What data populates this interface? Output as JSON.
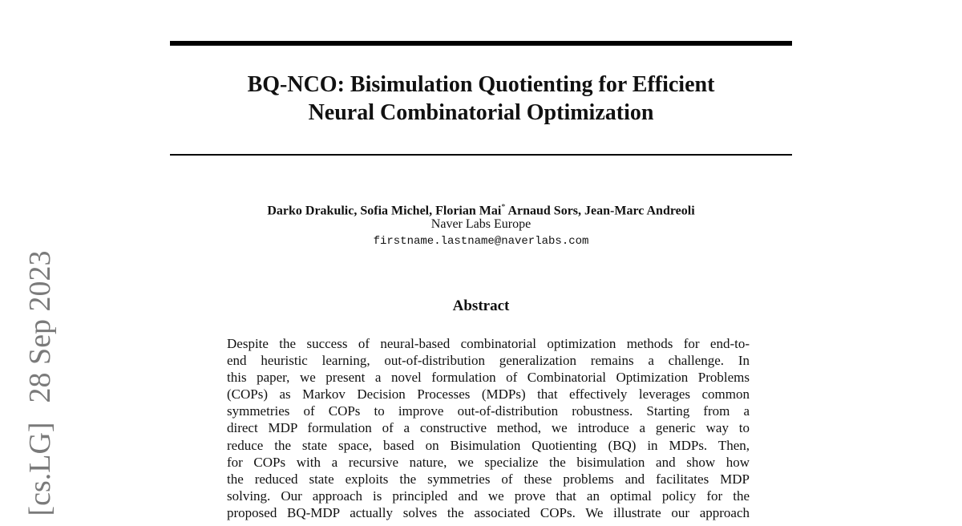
{
  "arxiv_stamp": {
    "category": "[cs.LG]",
    "date": "28 Sep 2023"
  },
  "title_lines": [
    "BQ-NCO: Bisimulation Quotienting for Efficient",
    "Neural Combinatorial Optimization"
  ],
  "authors": {
    "before_mark": "Darko Drakulic, Sofia Michel, Florian Mai",
    "mark": "*",
    "after_mark": " Arnaud Sors, Jean-Marc Andreoli"
  },
  "affiliation": "Naver Labs Europe",
  "email": "firstname.lastname@naverlabs.com",
  "abstract": {
    "heading": "Abstract",
    "lines": [
      "Despite the success of neural-based combinatorial optimization methods for end-to-",
      "end heuristic learning, out-of-distribution generalization remains a challenge. In",
      "this paper, we present a novel formulation of Combinatorial Optimization Problems",
      "(COPs) as Markov Decision Processes (MDPs) that effectively leverages common",
      "symmetries of COPs to improve out-of-distribution robustness. Starting from a",
      "direct MDP formulation of a constructive method, we introduce a generic way to",
      "reduce the state space, based on Bisimulation Quotienting (BQ) in MDPs. Then,",
      "for COPs with a recursive nature, we specialize the bisimulation and show how",
      "the reduced state exploits the symmetries of these problems and facilitates MDP",
      "solving. Our approach is principled and we prove that an optimal policy for the",
      "proposed BQ-MDP actually solves the associated COPs. We illustrate our approach"
    ]
  }
}
